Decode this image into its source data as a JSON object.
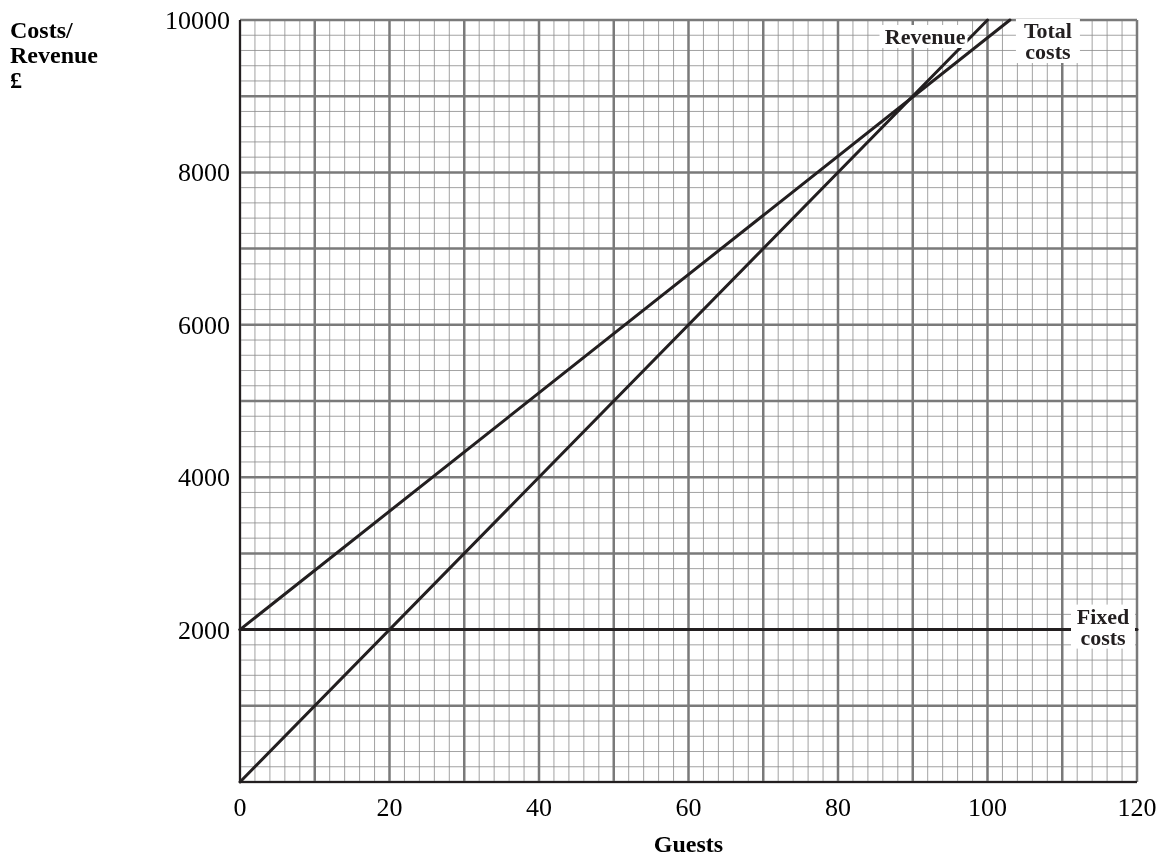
{
  "chart_data": {
    "type": "line",
    "xlabel": "Guests",
    "ylabel": "Costs/ Revenue £",
    "xlim": [
      0,
      120
    ],
    "ylim": [
      0,
      10000
    ],
    "xticks": [
      0,
      {
        "value": 10,
        "label": null
      },
      20,
      {
        "value": 30,
        "label": null
      },
      40,
      {
        "value": 50,
        "label": null
      },
      60,
      {
        "value": 70,
        "label": null
      },
      80,
      {
        "value": 90,
        "label": null
      },
      100,
      {
        "value": 110,
        "label": null
      },
      120
    ],
    "yticks": [
      {
        "value": 0,
        "label": null
      },
      {
        "value": 1000,
        "label": null
      },
      2000,
      {
        "value": 3000,
        "label": null
      },
      4000,
      {
        "value": 5000,
        "label": null
      },
      6000,
      {
        "value": 7000,
        "label": null
      },
      8000,
      {
        "value": 9000,
        "label": null
      },
      10000
    ],
    "grid": true,
    "marker": "none",
    "line_style": "solid",
    "series": [
      {
        "name": "Revenue",
        "color": "#231f20",
        "x": [
          0,
          100
        ],
        "values": [
          0,
          10000
        ]
      },
      {
        "name": "Total costs",
        "color": "#231f20",
        "x": [
          0,
          103
        ],
        "values": [
          2000,
          10000
        ]
      },
      {
        "name": "Fixed costs",
        "color": "#231f20",
        "x": [
          0,
          120
        ],
        "values": [
          2000,
          2000
        ]
      }
    ]
  }
}
